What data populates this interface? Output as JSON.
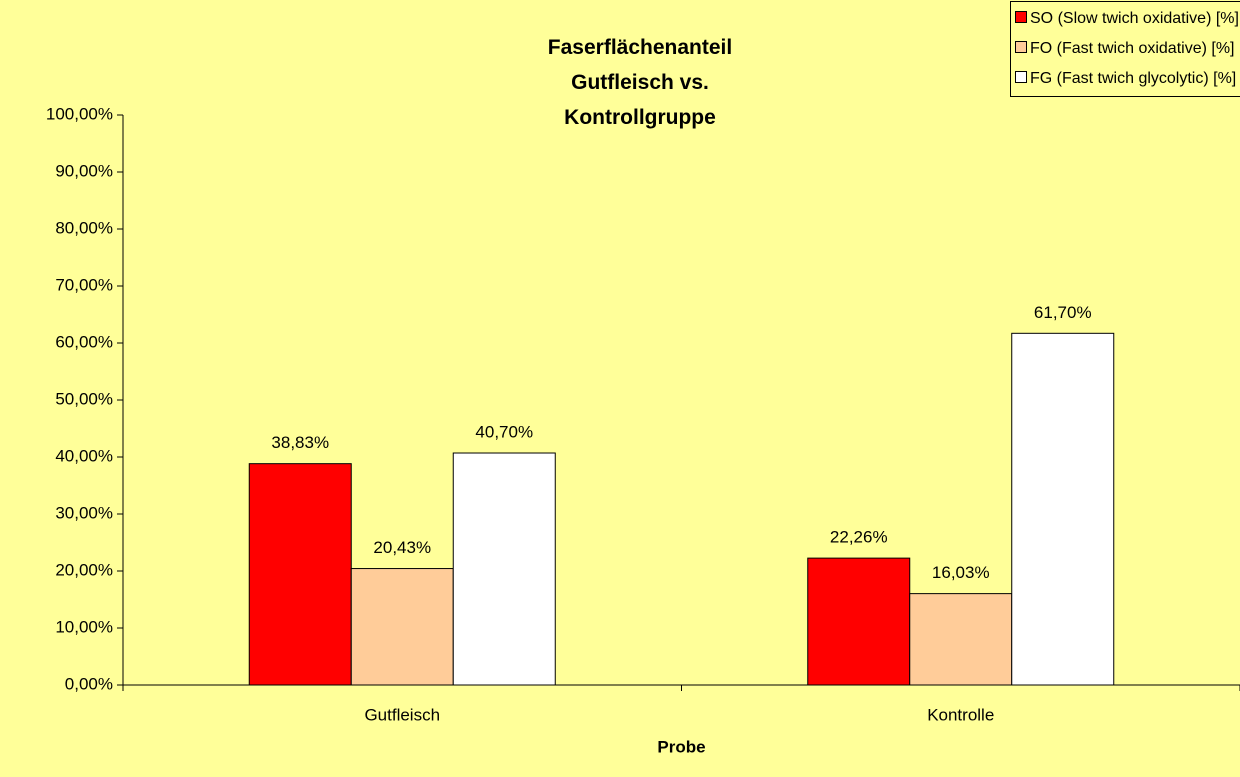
{
  "chart_data": {
    "type": "bar",
    "title": "Faserflächenanteil Gutfleisch vs. Kontrollgruppe",
    "x_label": "Probe",
    "categories": [
      "Gutfleisch",
      "Kontrolle"
    ],
    "series": [
      {
        "name": "SO (Slow twich oxidative) [%]",
        "color": "#ff0000",
        "values": [
          38.83,
          22.26
        ],
        "value_labels": [
          "38,83%",
          "22,26%"
        ]
      },
      {
        "name": "FO (Fast twich oxidative) [%]",
        "color": "#ffcc99",
        "values": [
          20.43,
          16.03
        ],
        "value_labels": [
          "20,43%",
          "16,03%"
        ]
      },
      {
        "name": "FG (Fast twich glycolytic) [%]",
        "color": "#ffffff",
        "values": [
          40.7,
          61.7
        ],
        "value_labels": [
          "40,70%",
          "61,70%"
        ]
      }
    ],
    "ylim": [
      0,
      100
    ],
    "yticks": [
      {
        "value": 0,
        "label": "0,00%"
      },
      {
        "value": 10,
        "label": "10,00%"
      },
      {
        "value": 20,
        "label": "20,00%"
      },
      {
        "value": 30,
        "label": "30,00%"
      },
      {
        "value": 40,
        "label": "40,00%"
      },
      {
        "value": 50,
        "label": "50,00%"
      },
      {
        "value": 60,
        "label": "60,00%"
      },
      {
        "value": 70,
        "label": "70,00%"
      },
      {
        "value": 80,
        "label": "80,00%"
      },
      {
        "value": 90,
        "label": "90,00%"
      },
      {
        "value": 100,
        "label": "100,00%"
      }
    ],
    "grid": false,
    "legend": "top-right"
  }
}
